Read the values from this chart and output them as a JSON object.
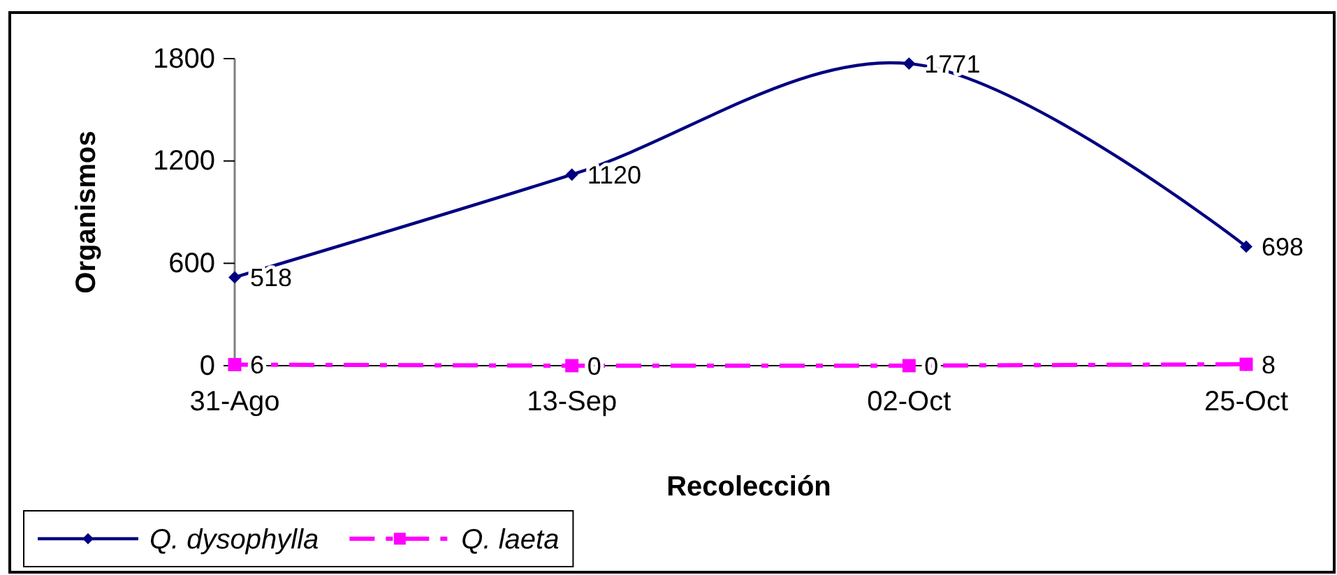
{
  "chart_data": {
    "type": "line",
    "categories": [
      "31-Ago",
      "13-Sep",
      "02-Oct",
      "25-Oct"
    ],
    "series": [
      {
        "name": "Q. dysophylla",
        "color": "#000080",
        "values": [
          518,
          1120,
          1771,
          698
        ],
        "marker": "diamond",
        "line_style": "solid"
      },
      {
        "name": "Q. laeta",
        "color": "#ff00ff",
        "values": [
          6,
          0,
          0,
          8
        ],
        "marker": "square",
        "line_style": "dashed"
      }
    ],
    "xlabel": "Recolección",
    "ylabel": "Organismos",
    "ylim": [
      0,
      1800
    ],
    "yticks": [
      0,
      600,
      1200,
      1800
    ],
    "data_labels": true,
    "legend": "bottom left"
  }
}
